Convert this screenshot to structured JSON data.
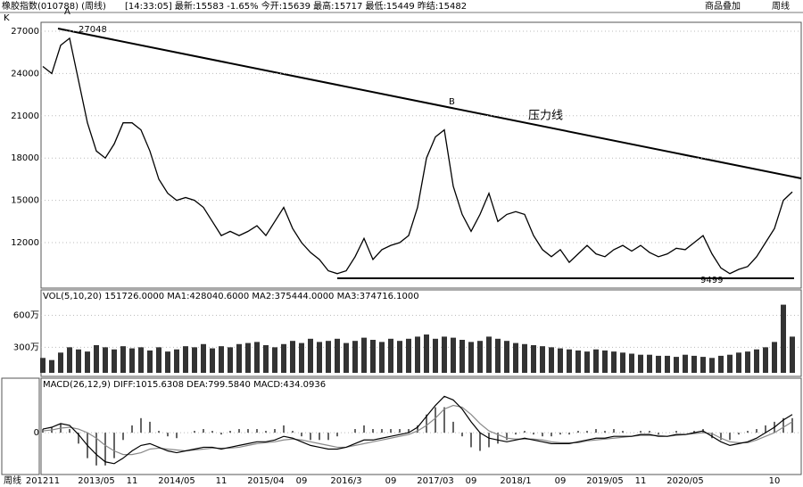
{
  "header": {
    "name": "橡胶指数(010788) (周线)",
    "quote": "[14:33:05] 最新:15583 -1.65% 今开:15639 最高:15717 最低:15449 昨结:15482",
    "overlay": "商品叠加",
    "period": "周线",
    "footer_label": "周线",
    "k": "K"
  },
  "chart_data": [
    {
      "type": "line",
      "color": "#000000",
      "categories": [
        "201211",
        null,
        null,
        null,
        null,
        null,
        "2013/05",
        null,
        null,
        null,
        "11",
        null,
        null,
        null,
        null,
        "2014/05",
        null,
        null,
        null,
        null,
        "11",
        null,
        null,
        null,
        null,
        "2015/04",
        null,
        null,
        null,
        "09",
        null,
        null,
        null,
        null,
        "2016/3",
        null,
        null,
        null,
        null,
        "09",
        null,
        null,
        null,
        null,
        "2017/03",
        null,
        null,
        null,
        "09",
        null,
        null,
        null,
        null,
        "2018/1",
        null,
        null,
        null,
        null,
        "09",
        null,
        null,
        null,
        null,
        "2019/05",
        null,
        null,
        null,
        "11",
        null,
        null,
        null,
        null,
        "2020/05",
        null,
        null,
        null,
        null,
        null,
        null,
        null,
        null,
        null,
        "10",
        null,
        null
      ],
      "values": [
        24500,
        24000,
        26000,
        26500,
        23500,
        20500,
        18500,
        18000,
        19000,
        20500,
        20500,
        20000,
        18500,
        16500,
        15500,
        15000,
        15200,
        15000,
        14500,
        13500,
        12500,
        12800,
        12500,
        12800,
        13200,
        12500,
        13500,
        14500,
        13000,
        12000,
        11300,
        10800,
        10000,
        9800,
        10000,
        11000,
        12300,
        10800,
        11500,
        11800,
        12000,
        12500,
        14500,
        18000,
        19500,
        20000,
        16000,
        14000,
        12800,
        14000,
        15500,
        13500,
        14000,
        14200,
        14000,
        12500,
        11500,
        11000,
        11500,
        10600,
        11200,
        11800,
        11200,
        11000,
        11500,
        11800,
        11400,
        11800,
        11300,
        11000,
        11200,
        11600,
        11500,
        12000,
        12500,
        11200,
        10200,
        9800,
        10100,
        10300,
        11000,
        12000,
        13000,
        15000,
        15600
      ],
      "ylim": [
        8836,
        27633
      ],
      "yticks": [
        27000,
        24000,
        21000,
        18000,
        15000,
        12000
      ],
      "grid": true,
      "annotations": [
        "A",
        "27048",
        "B",
        "压力线",
        "9499"
      ]
    },
    {
      "type": "bar",
      "color": "#333333",
      "title": "VOL(5,10,20) 151726.0000 MA1:428040.6000 MA2:375444.0000 MA3:374716.1000",
      "values": [
        200,
        180,
        250,
        300,
        280,
        260,
        320,
        300,
        280,
        310,
        290,
        300,
        270,
        300,
        260,
        280,
        310,
        300,
        330,
        290,
        310,
        300,
        330,
        340,
        350,
        320,
        300,
        330,
        360,
        340,
        380,
        350,
        360,
        380,
        340,
        360,
        390,
        370,
        350,
        380,
        360,
        380,
        400,
        420,
        380,
        400,
        390,
        370,
        350,
        360,
        400,
        380,
        360,
        340,
        330,
        320,
        310,
        300,
        290,
        280,
        270,
        260,
        280,
        270,
        260,
        250,
        240,
        230,
        230,
        220,
        220,
        210,
        230,
        220,
        210,
        200,
        220,
        230,
        250,
        260,
        280,
        300,
        350,
        700,
        400
      ],
      "ylim": [
        60,
        814
      ],
      "yticks": [
        {
          "value": 600,
          "label": "600万"
        },
        {
          "value": 300,
          "label": "300万"
        }
      ]
    },
    {
      "type": "macd",
      "title": "MACD(26,12,9) DIFF:1015.6308 DEA:799.5840 MACD:434.0936",
      "diff": [
        200,
        300,
        500,
        400,
        -100,
        -700,
        -1200,
        -1600,
        -1700,
        -1400,
        -1000,
        -700,
        -600,
        -800,
        -1000,
        -1100,
        -1000,
        -900,
        -800,
        -800,
        -900,
        -800,
        -700,
        -600,
        -500,
        -500,
        -400,
        -200,
        -300,
        -500,
        -700,
        -800,
        -900,
        -900,
        -800,
        -600,
        -400,
        -400,
        -300,
        -200,
        -100,
        0,
        300,
        900,
        1500,
        2000,
        1800,
        1300,
        600,
        0,
        -300,
        -400,
        -500,
        -400,
        -300,
        -400,
        -500,
        -600,
        -600,
        -600,
        -500,
        -400,
        -300,
        -300,
        -200,
        -200,
        -200,
        -100,
        -100,
        -200,
        -200,
        -100,
        -100,
        0,
        100,
        -200,
        -500,
        -700,
        -600,
        -500,
        -300,
        0,
        300,
        700,
        1000
      ],
      "dea": [
        100,
        150,
        250,
        300,
        200,
        0,
        -300,
        -700,
        -1000,
        -1200,
        -1200,
        -1100,
        -900,
        -850,
        -900,
        -950,
        -1000,
        -950,
        -900,
        -850,
        -850,
        -850,
        -800,
        -700,
        -600,
        -550,
        -500,
        -400,
        -350,
        -400,
        -500,
        -600,
        -700,
        -800,
        -800,
        -700,
        -600,
        -500,
        -400,
        -300,
        -200,
        -100,
        100,
        400,
        800,
        1300,
        1500,
        1400,
        1000,
        500,
        100,
        -100,
        -300,
        -350,
        -350,
        -350,
        -400,
        -500,
        -550,
        -550,
        -550,
        -450,
        -400,
        -350,
        -300,
        -250,
        -200,
        -150,
        -150,
        -150,
        -200,
        -150,
        -100,
        -50,
        0,
        -50,
        -300,
        -500,
        -550,
        -550,
        -400,
        -200,
        0,
        300,
        600
      ],
      "histogram": [
        200,
        300,
        500,
        200,
        -600,
        -1400,
        -1800,
        -1800,
        -1400,
        -400,
        400,
        800,
        600,
        100,
        -200,
        -300,
        0,
        100,
        200,
        100,
        -100,
        100,
        200,
        200,
        200,
        100,
        200,
        400,
        100,
        -200,
        -400,
        -400,
        -400,
        -200,
        0,
        200,
        400,
        200,
        200,
        200,
        200,
        200,
        400,
        1000,
        1400,
        1400,
        600,
        -200,
        -800,
        -1000,
        -800,
        -600,
        -400,
        -100,
        100,
        -100,
        -200,
        -200,
        -100,
        -100,
        100,
        100,
        200,
        100,
        200,
        100,
        0,
        100,
        100,
        -100,
        0,
        100,
        0,
        100,
        200,
        -300,
        -400,
        -400,
        -100,
        100,
        200,
        400,
        600,
        800,
        800
      ],
      "colors": {
        "diff": "#000000",
        "dea": "#888888",
        "histogram": "#333333"
      },
      "ylim": [
        -2200,
        2800
      ],
      "yticks": [
        0
      ]
    }
  ]
}
